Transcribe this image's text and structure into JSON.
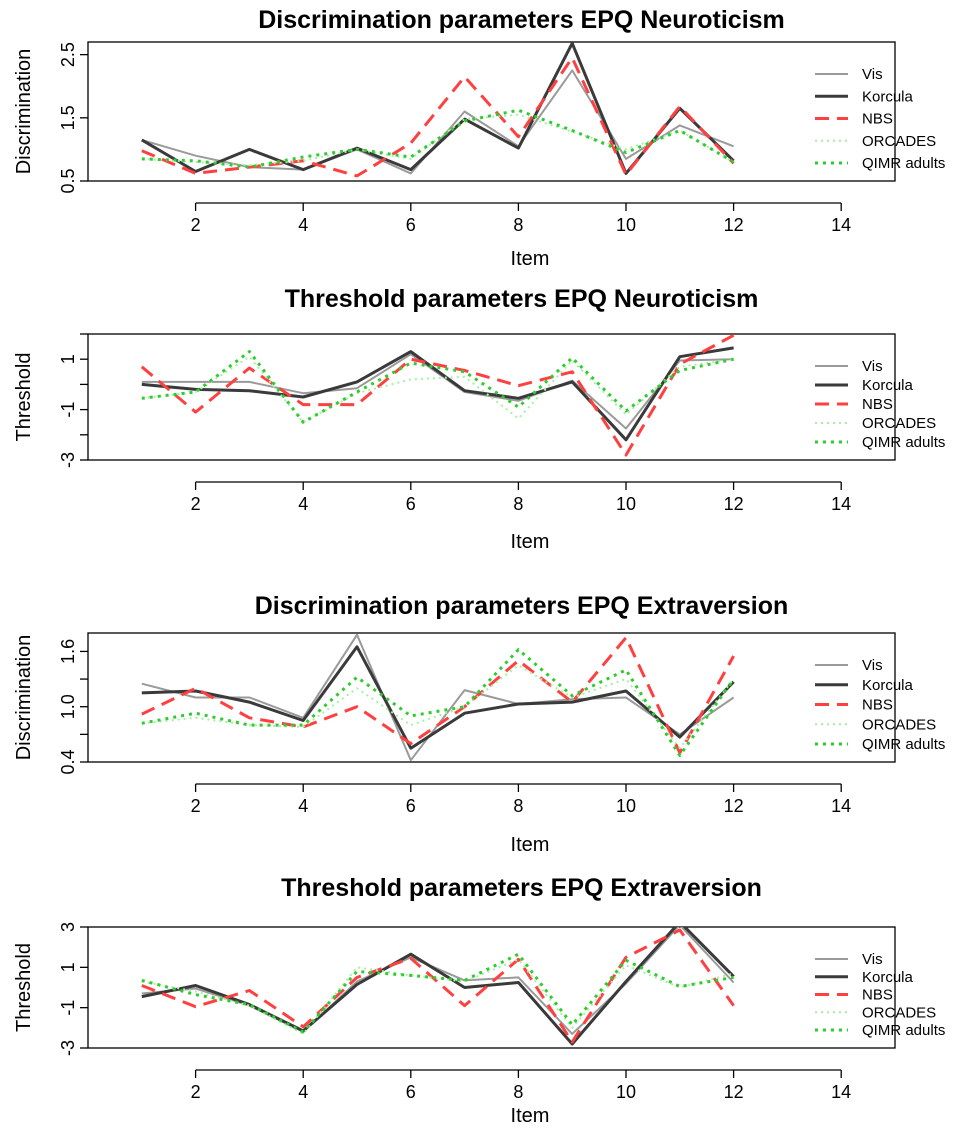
{
  "chart_data": [
    {
      "type": "line",
      "title": "Discrimination parameters EPQ Neuroticism",
      "xlabel": "Item",
      "ylabel": "Discrimination",
      "xlim": [
        0,
        15
      ],
      "ylim": [
        0.5,
        2.7
      ],
      "xticks": [
        2,
        4,
        6,
        8,
        10,
        12,
        14
      ],
      "yticks": [
        0.5,
        1.5,
        2.5
      ],
      "ytick_labels": [
        "0.5",
        "1.5",
        "2.5"
      ],
      "legend_position": "right",
      "x": [
        1,
        2,
        3,
        4,
        5,
        6,
        7,
        8,
        9,
        10,
        11,
        12
      ],
      "series": [
        {
          "name": "Vis",
          "color": "#9a9a9a",
          "dash": "solid",
          "width": 2,
          "values": [
            1.15,
            0.9,
            0.72,
            0.68,
            1.0,
            0.62,
            1.6,
            1.05,
            2.25,
            0.85,
            1.38,
            1.05
          ]
        },
        {
          "name": "Korcula",
          "color": "#3a3a3a",
          "dash": "solid",
          "width": 3,
          "values": [
            1.15,
            0.65,
            1.0,
            0.68,
            1.02,
            0.68,
            1.48,
            1.02,
            2.68,
            0.62,
            1.65,
            0.82
          ]
        },
        {
          "name": "NBS",
          "color": "#ff4040",
          "dash": "dashed",
          "width": 3,
          "values": [
            0.98,
            0.62,
            0.72,
            0.82,
            0.58,
            1.1,
            2.15,
            1.2,
            2.45,
            0.6,
            1.68,
            0.78
          ]
        },
        {
          "name": "ORCADES",
          "color": "#a6f0a6",
          "dash": "dotted-light",
          "width": 2,
          "values": [
            0.85,
            0.8,
            0.75,
            0.82,
            1.0,
            0.85,
            1.48,
            1.55,
            1.28,
            1.0,
            1.3,
            0.8
          ]
        },
        {
          "name": "QIMR adults",
          "color": "#2ecc2e",
          "dash": "dotted",
          "width": 3,
          "values": [
            0.85,
            0.82,
            0.72,
            0.88,
            1.0,
            0.88,
            1.45,
            1.62,
            1.3,
            0.95,
            1.3,
            0.8
          ]
        }
      ]
    },
    {
      "type": "line",
      "title": "Threshold parameters EPQ Neuroticism",
      "xlabel": "Item",
      "ylabel": "Threshold",
      "xlim": [
        0,
        15
      ],
      "ylim": [
        -3,
        2
      ],
      "xticks": [
        2,
        4,
        6,
        8,
        10,
        12,
        14
      ],
      "yticks": [
        -3,
        -2,
        -1,
        0,
        1,
        2
      ],
      "ytick_labels": [
        "-3",
        "",
        "-1",
        "",
        "1",
        ""
      ],
      "legend_position": "right",
      "x": [
        1,
        2,
        3,
        4,
        5,
        6,
        7,
        8,
        9,
        10,
        11,
        12
      ],
      "series": [
        {
          "name": "Vis",
          "color": "#9a9a9a",
          "dash": "solid",
          "width": 2,
          "values": [
            0.1,
            0.1,
            0.1,
            -0.35,
            -0.15,
            1.2,
            -0.3,
            -0.65,
            0.15,
            -1.75,
            0.95,
            1.0
          ]
        },
        {
          "name": "Korcula",
          "color": "#3a3a3a",
          "dash": "solid",
          "width": 3,
          "values": [
            0.0,
            -0.2,
            -0.25,
            -0.5,
            0.1,
            1.3,
            -0.25,
            -0.55,
            0.1,
            -2.2,
            1.1,
            1.45
          ]
        },
        {
          "name": "NBS",
          "color": "#ff4040",
          "dash": "dashed",
          "width": 3,
          "values": [
            0.7,
            -1.1,
            0.65,
            -0.8,
            -0.8,
            1.0,
            0.55,
            -0.05,
            0.5,
            -2.8,
            0.8,
            1.95
          ]
        },
        {
          "name": "ORCADES",
          "color": "#a6f0a6",
          "dash": "dotted-light",
          "width": 2,
          "values": [
            -0.55,
            -0.3,
            1.1,
            -1.5,
            -0.35,
            0.2,
            0.3,
            -1.35,
            0.95,
            -1.2,
            0.7,
            1.0
          ]
        },
        {
          "name": "QIMR adults",
          "color": "#2ecc2e",
          "dash": "dotted",
          "width": 3,
          "values": [
            -0.55,
            -0.3,
            1.3,
            -1.5,
            -0.3,
            0.85,
            0.5,
            -0.9,
            1.05,
            -1.05,
            0.55,
            1.0
          ]
        }
      ]
    },
    {
      "type": "line",
      "title": "Discrimination parameters EPQ Extraversion",
      "xlabel": "Item",
      "ylabel": "Discrimination",
      "xlim": [
        0,
        15
      ],
      "ylim": [
        0.4,
        1.8
      ],
      "xticks": [
        2,
        4,
        6,
        8,
        10,
        12,
        14
      ],
      "yticks": [
        0.4,
        0.7,
        1.0,
        1.3,
        1.6
      ],
      "ytick_labels": [
        "0.4",
        "",
        "1.0",
        "",
        "1.6"
      ],
      "legend_position": "right",
      "x": [
        1,
        2,
        3,
        4,
        5,
        6,
        7,
        8,
        9,
        10,
        11,
        12
      ],
      "series": [
        {
          "name": "Vis",
          "color": "#9a9a9a",
          "dash": "solid",
          "width": 2,
          "values": [
            1.25,
            1.1,
            1.1,
            0.88,
            1.78,
            0.42,
            1.18,
            1.03,
            1.08,
            1.1,
            0.7,
            1.1
          ]
        },
        {
          "name": "Korcula",
          "color": "#3a3a3a",
          "dash": "solid",
          "width": 3,
          "values": [
            1.15,
            1.17,
            1.05,
            0.85,
            1.65,
            0.55,
            0.93,
            1.03,
            1.05,
            1.17,
            0.67,
            1.27
          ]
        },
        {
          "name": "NBS",
          "color": "#ff4040",
          "dash": "dashed",
          "width": 3,
          "values": [
            0.92,
            1.2,
            0.88,
            0.78,
            1.0,
            0.6,
            1.0,
            1.5,
            1.05,
            1.75,
            0.5,
            1.55
          ]
        },
        {
          "name": "ORCADES",
          "color": "#a6f0a6",
          "dash": "dotted-light",
          "width": 2,
          "values": [
            0.82,
            0.88,
            0.8,
            0.78,
            1.2,
            0.8,
            1.0,
            1.45,
            1.1,
            1.3,
            0.55,
            1.3
          ]
        },
        {
          "name": "QIMR adults",
          "color": "#2ecc2e",
          "dash": "dotted",
          "width": 3,
          "values": [
            0.82,
            0.93,
            0.8,
            0.8,
            1.32,
            0.9,
            1.0,
            1.62,
            1.12,
            1.4,
            0.47,
            1.3
          ]
        }
      ]
    },
    {
      "type": "line",
      "title": "Threshold parameters EPQ Extraversion",
      "xlabel": "Item",
      "ylabel": "Threshold",
      "xlim": [
        0,
        15
      ],
      "ylim": [
        -3,
        3
      ],
      "xticks": [
        2,
        4,
        6,
        8,
        10,
        12,
        14
      ],
      "yticks": [
        -3,
        -1,
        1,
        3
      ],
      "ytick_labels": [
        "-3",
        "-1",
        "1",
        "3"
      ],
      "legend_position": "right",
      "x": [
        1,
        2,
        3,
        4,
        5,
        6,
        7,
        8,
        9,
        10,
        11,
        12
      ],
      "series": [
        {
          "name": "Vis",
          "color": "#9a9a9a",
          "dash": "solid",
          "width": 2,
          "values": [
            -0.3,
            -0.05,
            -0.9,
            -2.2,
            0.3,
            1.5,
            0.35,
            0.5,
            -2.3,
            0.2,
            3.1,
            0.25
          ]
        },
        {
          "name": "Korcula",
          "color": "#3a3a3a",
          "dash": "solid",
          "width": 3,
          "values": [
            -0.45,
            0.1,
            -0.85,
            -2.15,
            0.15,
            1.65,
            0.0,
            0.25,
            -2.8,
            0.3,
            3.25,
            0.55
          ]
        },
        {
          "name": "NBS",
          "color": "#ff4040",
          "dash": "dashed",
          "width": 3,
          "values": [
            0.1,
            -0.95,
            -0.15,
            -1.95,
            0.5,
            1.45,
            -0.9,
            1.4,
            -2.7,
            1.5,
            2.85,
            -0.9
          ]
        },
        {
          "name": "ORCADES",
          "color": "#a6f0a6",
          "dash": "dotted-light",
          "width": 2,
          "values": [
            0.3,
            -0.2,
            -0.9,
            -2.3,
            1.0,
            0.6,
            0.3,
            1.4,
            -2.0,
            1.1,
            0.0,
            0.7
          ]
        },
        {
          "name": "QIMR adults",
          "color": "#2ecc2e",
          "dash": "dotted",
          "width": 3,
          "values": [
            0.35,
            -0.35,
            -0.85,
            -2.2,
            0.8,
            0.6,
            0.35,
            1.65,
            -1.85,
            1.35,
            0.05,
            0.5
          ]
        }
      ]
    }
  ]
}
